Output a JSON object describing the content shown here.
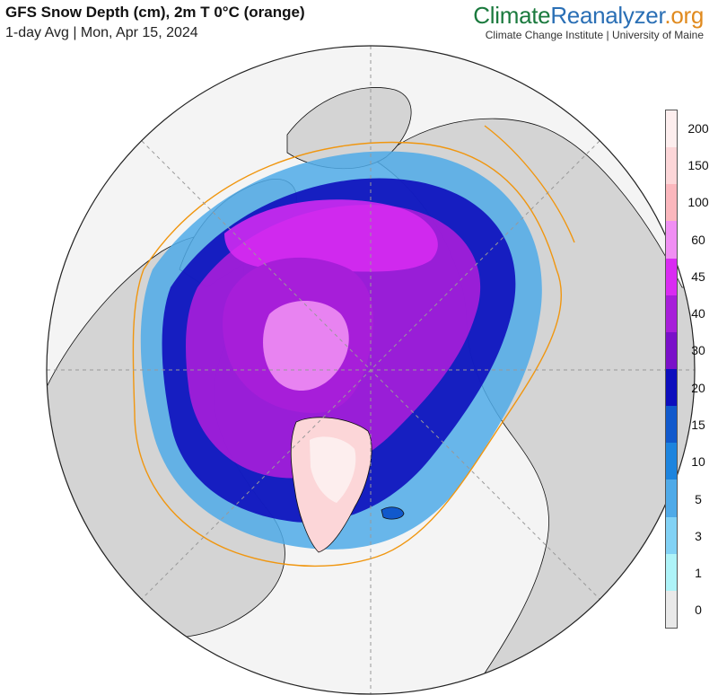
{
  "header": {
    "title": "GFS Snow Depth (cm), 2m T 0°C (orange)",
    "subtitle": "1-day Avg | Mon, Apr 15, 2024"
  },
  "brand": {
    "part1": "Climate",
    "part2": "Reanalyzer",
    "part3": ".org",
    "institute": "Climate Change Institute | University of Maine"
  },
  "colors": {
    "ocean": "#f4f4f4",
    "land": "#d4d4d4",
    "freezing_line": "#f0960f",
    "graticule": "#999999"
  },
  "legend": {
    "bands": [
      {
        "label": "200",
        "color": "#fdeeee"
      },
      {
        "label": "150",
        "color": "#fcd6d8"
      },
      {
        "label": "100",
        "color": "#fbb7bd"
      },
      {
        "label": "60",
        "color": "#f08ef3"
      },
      {
        "label": "45",
        "color": "#d92bf2"
      },
      {
        "label": "40",
        "color": "#a71ed9"
      },
      {
        "label": "30",
        "color": "#7a10c9"
      },
      {
        "label": "20",
        "color": "#0d0ebd"
      },
      {
        "label": "15",
        "color": "#1159cc"
      },
      {
        "label": "10",
        "color": "#1d84de"
      },
      {
        "label": "5",
        "color": "#4faae8"
      },
      {
        "label": "3",
        "color": "#82d2f5"
      },
      {
        "label": "1",
        "color": "#aef3f8"
      },
      {
        "label": "0",
        "color": "#e9e9e9"
      }
    ]
  }
}
